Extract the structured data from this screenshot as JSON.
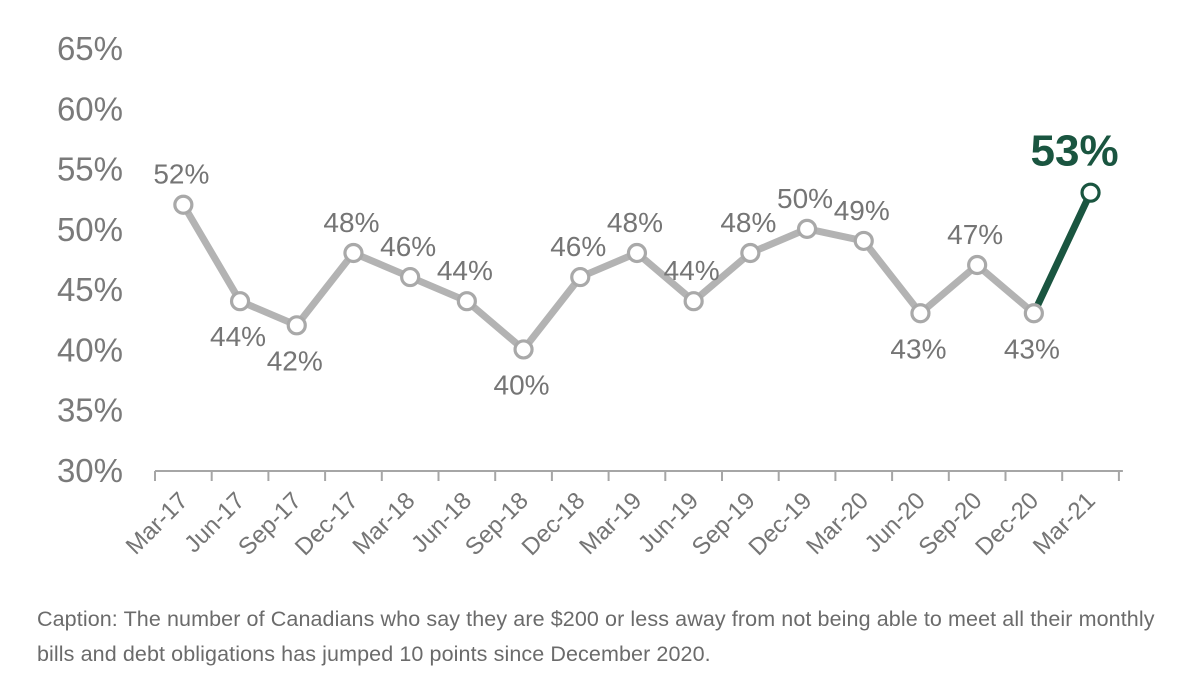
{
  "chart_data": {
    "type": "line",
    "title": "",
    "categories": [
      "Mar-17",
      "Jun-17",
      "Sep-17",
      "Dec-17",
      "Mar-18",
      "Jun-18",
      "Sep-18",
      "Dec-18",
      "Mar-19",
      "Jun-19",
      "Sep-19",
      "Dec-19",
      "Mar-20",
      "Jun-20",
      "Sep-20",
      "Dec-20",
      "Mar-21"
    ],
    "series": [
      {
        "name": "Canadians $200 or less away from not meeting monthly obligations",
        "values": [
          52,
          44,
          42,
          48,
          46,
          44,
          40,
          46,
          48,
          44,
          48,
          50,
          49,
          43,
          47,
          43,
          53
        ],
        "point_labels": [
          "52%",
          "44%",
          "42%",
          "48%",
          "46%",
          "44%",
          "40%",
          "46%",
          "48%",
          "44%",
          "48%",
          "50%",
          "49%",
          "43%",
          "47%",
          "43%",
          "53%"
        ],
        "label_positions": [
          "above",
          "below",
          "below",
          "above",
          "above",
          "above",
          "below",
          "above",
          "above",
          "above",
          "above",
          "above",
          "above",
          "below",
          "above",
          "below",
          "above"
        ]
      }
    ],
    "xlabel": "",
    "ylabel": "",
    "ylim": [
      30,
      65
    ],
    "ytick_interval": 5,
    "ytick_labels": [
      "30%",
      "35%",
      "40%",
      "45%",
      "50%",
      "55%",
      "60%",
      "65%"
    ],
    "grid": false,
    "legend": "none",
    "highlight": {
      "index": 16,
      "label": "53%"
    },
    "colors": {
      "series_line": "#b3b3b3",
      "marker_fill": "#ffffff",
      "marker_stroke": "#a9a9a9",
      "highlight_green": "#1a5540",
      "data_label": "#757575",
      "axis_label": "#7a7a7a",
      "axis_line": "#a6a6a6"
    }
  },
  "caption": {
    "text": "Caption: The number of Canadians who say they are $200 or less away from not being able to meet all their monthly bills and debt obligations has jumped 10 points since December 2020."
  }
}
